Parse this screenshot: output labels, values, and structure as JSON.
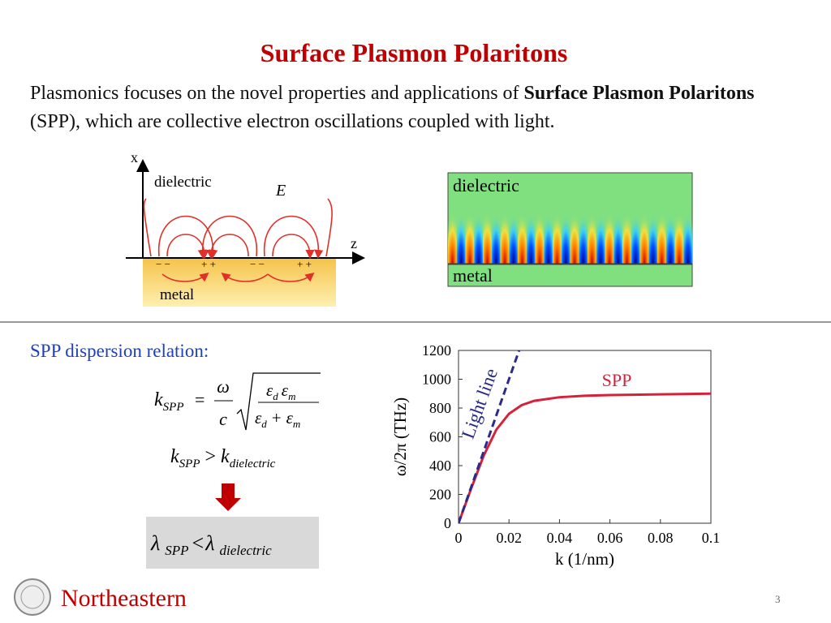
{
  "title": "Surface Plasmon Polaritons",
  "intro": {
    "text1": "Plasmonics focuses on the novel properties and applications of ",
    "bold1": "Surface Plasmon Polaritons",
    "text2": " (SPP), which are collective electron oscillations coupled with light."
  },
  "diagram": {
    "x_axis": "x",
    "z_axis": "z",
    "dielectric": "dielectric",
    "field": "E",
    "metal": "metal",
    "charges": [
      "− −",
      "+ +",
      "− −",
      "+ +"
    ]
  },
  "simulation": {
    "top": "dielectric",
    "bottom": "metal"
  },
  "dispersion": {
    "heading": "SPP dispersion relation:",
    "equation1": {
      "k": "k",
      "sub": "SPP",
      "eq": "=",
      "omega": "ω",
      "c": "c",
      "eps": "ε",
      "d": "d",
      "m": "m",
      "plus": "+"
    },
    "equation2": {
      "k": "k",
      "sub1": "SPP",
      "op": ">",
      "sub2": "dielectric"
    },
    "equation3": {
      "lambda": "λ",
      "sub1": "SPP",
      "op": "<",
      "sub2": "dielectric"
    }
  },
  "chart_data": {
    "type": "line",
    "x_label": "k (1/nm)",
    "y_label": "ω/2π (THz)",
    "xlim": [
      0,
      0.1
    ],
    "ylim": [
      0,
      1200
    ],
    "xticks": [
      0,
      0.02,
      0.04,
      0.06,
      0.08,
      0.1
    ],
    "yticks": [
      0,
      200,
      400,
      600,
      800,
      1000,
      1200
    ],
    "grid": false,
    "series": [
      {
        "name": "SPP",
        "color": "#d8203a",
        "line_style": "solid",
        "x": [
          0,
          0.005,
          0.01,
          0.015,
          0.02,
          0.025,
          0.03,
          0.04,
          0.05,
          0.06,
          0.08,
          0.1
        ],
        "values": [
          0,
          240,
          470,
          650,
          760,
          820,
          850,
          875,
          885,
          890,
          895,
          900
        ]
      },
      {
        "name": "Light line",
        "color": "#2a2a8a",
        "line_style": "dashed",
        "x": [
          0,
          0.024
        ],
        "values": [
          0,
          1200
        ]
      }
    ]
  },
  "footer": {
    "logo": "Northeastern",
    "page": "3"
  }
}
